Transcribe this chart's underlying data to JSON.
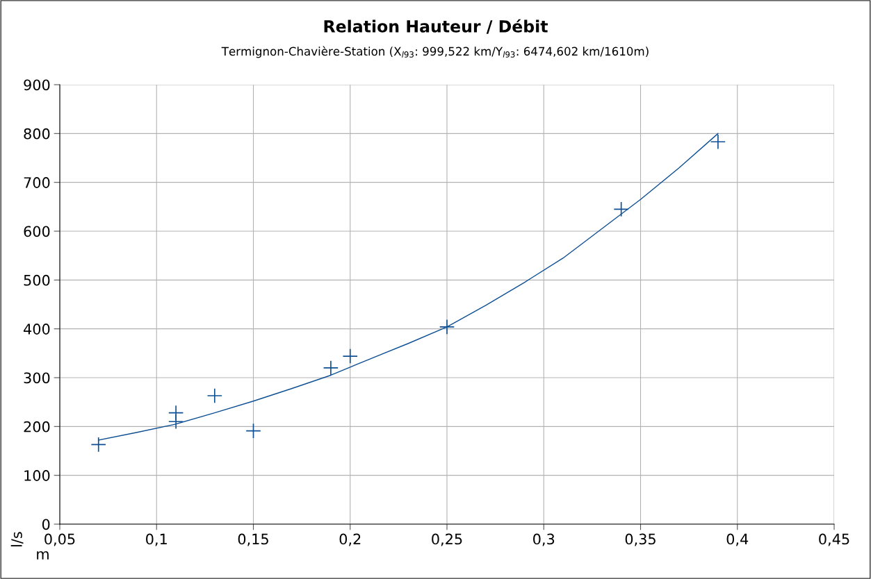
{
  "chart_data": {
    "type": "scatter",
    "title": "Relation Hauteur / Débit",
    "subtitle": "Termignon-Chavière-Station (X$_{l93}$: 999,522 km/Y$_{l93}$: 6474,602 km/1610m)",
    "xlabel": "m",
    "ylabel": "l/s",
    "series": [
      {
        "color": "#0d4f94",
        "marker": "cross",
        "x": [
          0.07,
          0.11,
          0.11,
          0.13,
          0.15,
          0.19,
          0.2,
          0.25,
          0.34,
          0.39
        ],
        "values": [
          163,
          228,
          210,
          263,
          191,
          320,
          344,
          404,
          645,
          783
        ]
      },
      {
        "type": "line",
        "color": "#0d4f94",
        "marker": "none",
        "line_style": "solid",
        "x": [
          0.07,
          0.09,
          0.11,
          0.13,
          0.15,
          0.17,
          0.19,
          0.21,
          0.23,
          0.25,
          0.27,
          0.29,
          0.31,
          0.33,
          0.35,
          0.37,
          0.39
        ],
        "values": [
          172,
          188,
          205,
          228,
          252,
          278,
          305,
          338,
          370,
          404,
          448,
          495,
          545,
          605,
          665,
          730,
          800
        ]
      }
    ],
    "xlim": [
      0.05,
      0.45
    ],
    "xticks": [
      {
        "value": 0.05,
        "label": "0,05"
      },
      {
        "value": 0.1,
        "label": "0,1"
      },
      {
        "value": 0.15,
        "label": "0,15"
      },
      {
        "value": 0.2,
        "label": "0,2"
      },
      {
        "value": 0.25,
        "label": "0,25"
      },
      {
        "value": 0.3,
        "label": "0,3"
      },
      {
        "value": 0.35,
        "label": "0,35"
      },
      {
        "value": 0.4,
        "label": "0,4"
      },
      {
        "value": 0.45,
        "label": "0,45"
      }
    ],
    "ylim": [
      0,
      900
    ],
    "yticks": [
      0,
      100,
      200,
      300,
      400,
      500,
      600,
      700,
      800,
      900
    ],
    "grid": true
  }
}
